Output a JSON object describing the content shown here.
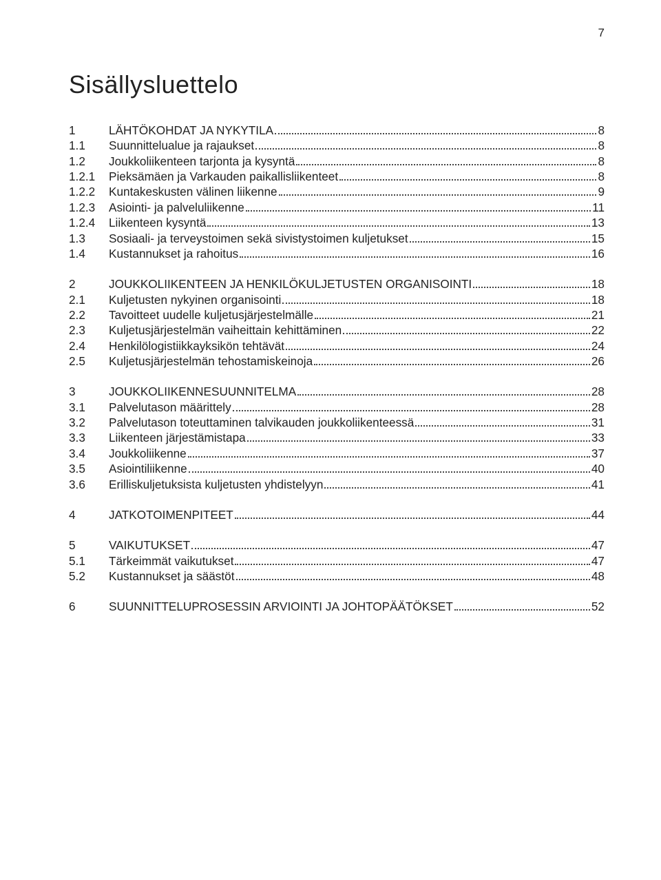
{
  "page_number": "7",
  "title": "Sisällysluettelo",
  "groups": [
    [
      {
        "lvl": 1,
        "n": "1",
        "t": "LÄHTÖKOHDAT JA NYKYTILA",
        "p": "8"
      },
      {
        "lvl": 2,
        "n": "1.1",
        "t": "Suunnittelualue ja rajaukset",
        "p": "8"
      },
      {
        "lvl": 2,
        "n": "1.2",
        "t": "Joukkoliikenteen tarjonta ja kysyntä",
        "p": "8"
      },
      {
        "lvl": 3,
        "n": "1.2.1",
        "t": "Pieksämäen ja Varkauden paikallisliikenteet",
        "p": "8"
      },
      {
        "lvl": 3,
        "n": "1.2.2",
        "t": "Kuntakeskusten välinen liikenne",
        "p": "9"
      },
      {
        "lvl": 3,
        "n": "1.2.3",
        "t": "Asiointi- ja palveluliikenne",
        "p": "11"
      },
      {
        "lvl": 3,
        "n": "1.2.4",
        "t": "Liikenteen kysyntä",
        "p": "13"
      },
      {
        "lvl": 2,
        "n": "1.3",
        "t": "Sosiaali- ja terveystoimen sekä sivistystoimen kuljetukset",
        "p": "15"
      },
      {
        "lvl": 2,
        "n": "1.4",
        "t": "Kustannukset ja rahoitus",
        "p": "16"
      }
    ],
    [
      {
        "lvl": 1,
        "n": "2",
        "t": "JOUKKOLIIKENTEEN JA HENKILÖKULJETUSTEN ORGANISOINTI",
        "p": "18"
      },
      {
        "lvl": 2,
        "n": "2.1",
        "t": "Kuljetusten nykyinen organisointi",
        "p": "18"
      },
      {
        "lvl": 2,
        "n": "2.2",
        "t": "Tavoitteet uudelle kuljetusjärjestelmälle",
        "p": "21"
      },
      {
        "lvl": 2,
        "n": "2.3",
        "t": "Kuljetusjärjestelmän vaiheittain kehittäminen",
        "p": "22"
      },
      {
        "lvl": 2,
        "n": "2.4",
        "t": "Henkilölogistiikkayksikön tehtävät",
        "p": "24"
      },
      {
        "lvl": 2,
        "n": "2.5",
        "t": "Kuljetusjärjestelmän tehostamiskeinoja",
        "p": "26"
      }
    ],
    [
      {
        "lvl": 1,
        "n": "3",
        "t": "JOUKKOLIIKENNESUUNNITELMA",
        "p": "28"
      },
      {
        "lvl": 2,
        "n": "3.1",
        "t": "Palvelutason määrittely",
        "p": "28"
      },
      {
        "lvl": 2,
        "n": "3.2",
        "t": "Palvelutason toteuttaminen talvikauden joukkoliikenteessä",
        "p": "31"
      },
      {
        "lvl": 2,
        "n": "3.3",
        "t": "Liikenteen järjestämistapa",
        "p": "33"
      },
      {
        "lvl": 2,
        "n": "3.4",
        "t": "Joukkoliikenne",
        "p": "37"
      },
      {
        "lvl": 2,
        "n": "3.5",
        "t": "Asiointiliikenne",
        "p": "40"
      },
      {
        "lvl": 2,
        "n": "3.6",
        "t": "Erilliskuljetuksista kuljetusten yhdistelyyn",
        "p": "41"
      }
    ],
    [
      {
        "lvl": 1,
        "n": "4",
        "t": "JATKOTOIMENPITEET",
        "p": "44"
      }
    ],
    [
      {
        "lvl": 1,
        "n": "5",
        "t": "VAIKUTUKSET",
        "p": "47"
      },
      {
        "lvl": 2,
        "n": "5.1",
        "t": "Tärkeimmät vaikutukset",
        "p": "47"
      },
      {
        "lvl": 2,
        "n": "5.2",
        "t": "Kustannukset ja säästöt",
        "p": "48"
      }
    ],
    [
      {
        "lvl": 1,
        "n": "6",
        "t": "SUUNNITTELUPROSESSIN ARVIOINTI JA JOHTOPÄÄTÖKSET",
        "p": "52"
      }
    ]
  ]
}
